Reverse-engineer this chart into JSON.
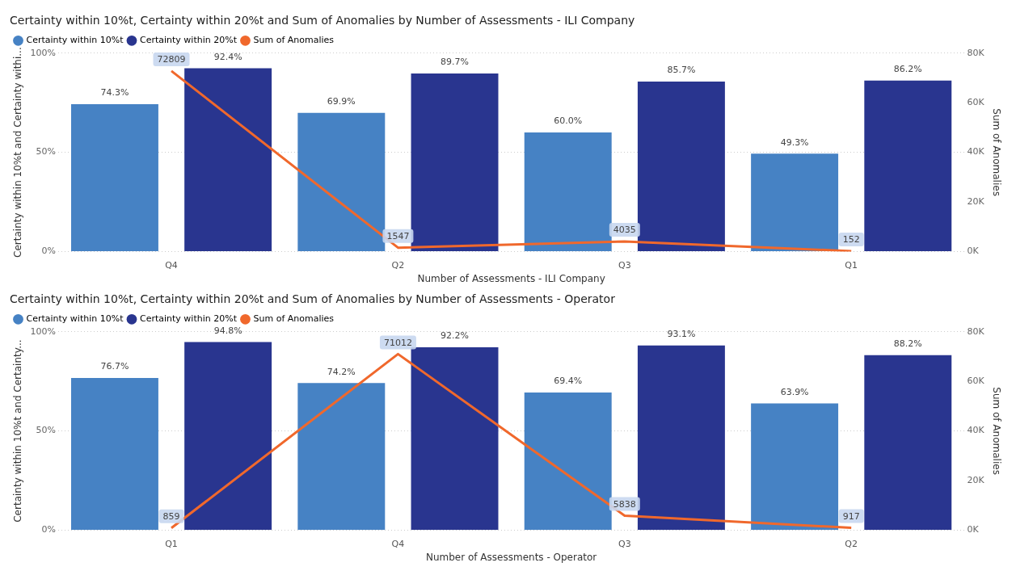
{
  "chart_data": [
    {
      "type": "bar",
      "title": "Certainty within 10%t, Certainty within 20%t and Sum of Anomalies by Number of Assessments - ILI Company",
      "xlabel": "Number of Assessments - ILI Company",
      "ylabel": "Certainty within 10%t and Certainty withi...",
      "y2label": "Sum of Anomalies",
      "categories": [
        "Q4",
        "Q2",
        "Q3",
        "Q1"
      ],
      "legend": "top left",
      "grid": "y",
      "ylim": [
        0,
        100
      ],
      "yticks": [
        {
          "value": 0,
          "label": "0%"
        },
        {
          "value": 50,
          "label": "50%"
        },
        {
          "value": 100,
          "label": "100%"
        }
      ],
      "y2lim": [
        0,
        80000
      ],
      "y2ticks": [
        {
          "value": 0,
          "label": "0K"
        },
        {
          "value": 20000,
          "label": "20K"
        },
        {
          "value": 40000,
          "label": "40K"
        },
        {
          "value": 60000,
          "label": "60K"
        },
        {
          "value": 80000,
          "label": "80K"
        }
      ],
      "marker": "none",
      "series": [
        {
          "name": "Certainty within 10%t",
          "color": "#4682c4",
          "values": [
            74.3,
            69.9,
            60.0,
            49.3
          ],
          "value_labels": [
            "74.3%",
            "69.9%",
            "60.0%",
            "49.3%"
          ]
        },
        {
          "name": "Certainty within 20%t",
          "color": "#29358f",
          "values": [
            92.4,
            89.7,
            85.7,
            86.2
          ],
          "value_labels": [
            "92.4%",
            "89.7%",
            "85.7%",
            "86.2%"
          ]
        },
        {
          "name": "Sum of Anomalies",
          "type": "line",
          "axis": "y2",
          "color": "#f0682c",
          "values": [
            72809,
            1547,
            4035,
            152
          ],
          "value_labels": [
            "72809",
            "1547",
            "4035",
            "152"
          ]
        }
      ]
    },
    {
      "type": "bar",
      "title": "Certainty within 10%t, Certainty within 20%t and Sum of Anomalies by Number of Assessments - Operator",
      "xlabel": "Number of Assessments - Operator",
      "ylabel": "Certainty within 10%t and Certainty...",
      "y2label": "Sum of Anomalies",
      "categories": [
        "Q1",
        "Q4",
        "Q3",
        "Q2"
      ],
      "legend": "top left",
      "grid": "y",
      "ylim": [
        0,
        100
      ],
      "yticks": [
        {
          "value": 0,
          "label": "0%"
        },
        {
          "value": 50,
          "label": "50%"
        },
        {
          "value": 100,
          "label": "100%"
        }
      ],
      "y2lim": [
        0,
        80000
      ],
      "y2ticks": [
        {
          "value": 0,
          "label": "0K"
        },
        {
          "value": 20000,
          "label": "20K"
        },
        {
          "value": 40000,
          "label": "40K"
        },
        {
          "value": 60000,
          "label": "60K"
        },
        {
          "value": 80000,
          "label": "80K"
        }
      ],
      "marker": "none",
      "series": [
        {
          "name": "Certainty within 10%t",
          "color": "#4682c4",
          "values": [
            76.7,
            74.2,
            69.4,
            63.9
          ],
          "value_labels": [
            "76.7%",
            "74.2%",
            "69.4%",
            "63.9%"
          ]
        },
        {
          "name": "Certainty within 20%t",
          "color": "#29358f",
          "values": [
            94.8,
            92.2,
            93.1,
            88.2
          ],
          "value_labels": [
            "94.8%",
            "92.2%",
            "93.1%",
            "88.2%"
          ]
        },
        {
          "name": "Sum of Anomalies",
          "type": "line",
          "axis": "y2",
          "color": "#f0682c",
          "values": [
            859,
            71012,
            5838,
            917
          ],
          "value_labels": [
            "859",
            "71012",
            "5838",
            "917"
          ]
        }
      ]
    }
  ]
}
